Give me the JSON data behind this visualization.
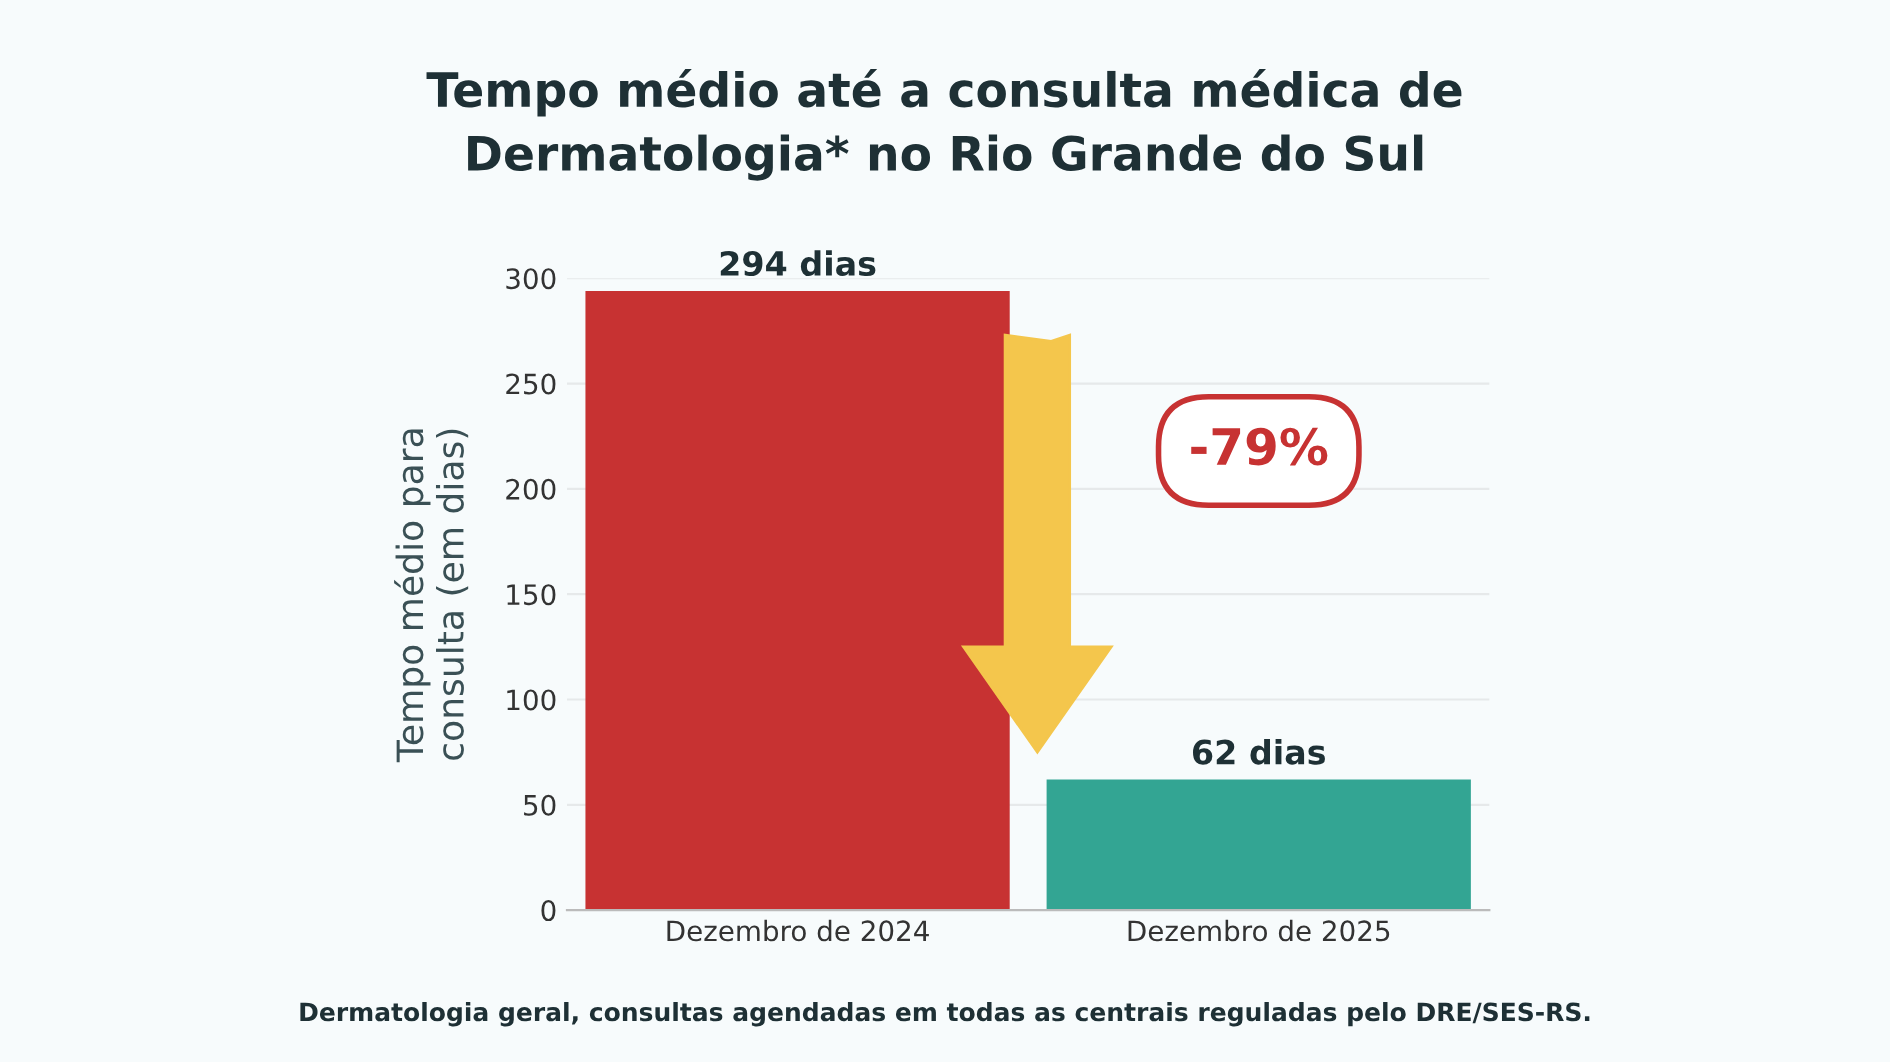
{
  "chart_data": {
    "type": "bar",
    "title": "Tempo médio até a consulta médica de\nDermatologia* no Rio Grande do Sul",
    "ylabel": "Tempo médio para\nconsulta (em dias)",
    "categories": [
      "Dezembro de 2024",
      "Dezembro de 2025"
    ],
    "values": [
      294,
      62
    ],
    "colors": [
      "#c73232",
      "#33a593"
    ],
    "value_labels": [
      "294 dias",
      "62 dias"
    ],
    "ylim": [
      0,
      300
    ],
    "yticks": [
      0,
      50,
      100,
      150,
      200,
      250,
      300
    ],
    "grid": "y",
    "annotations": [
      "-79%",
      "Dermatologia geral, consultas agendadas em todas as centrais reguladas pelo DRE/SES-RS."
    ]
  }
}
